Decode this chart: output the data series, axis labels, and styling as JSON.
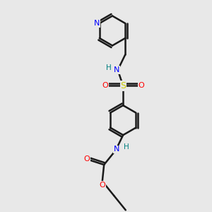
{
  "bg_color": "#e8e8e8",
  "atom_colors": {
    "C": "#1a1a1a",
    "N": "#0000ff",
    "O": "#ff0000",
    "S": "#cccc00",
    "H": "#008080"
  },
  "bond_color": "#1a1a1a",
  "bond_width": 1.8,
  "fig_width": 3.0,
  "fig_height": 3.0,
  "dpi": 100
}
